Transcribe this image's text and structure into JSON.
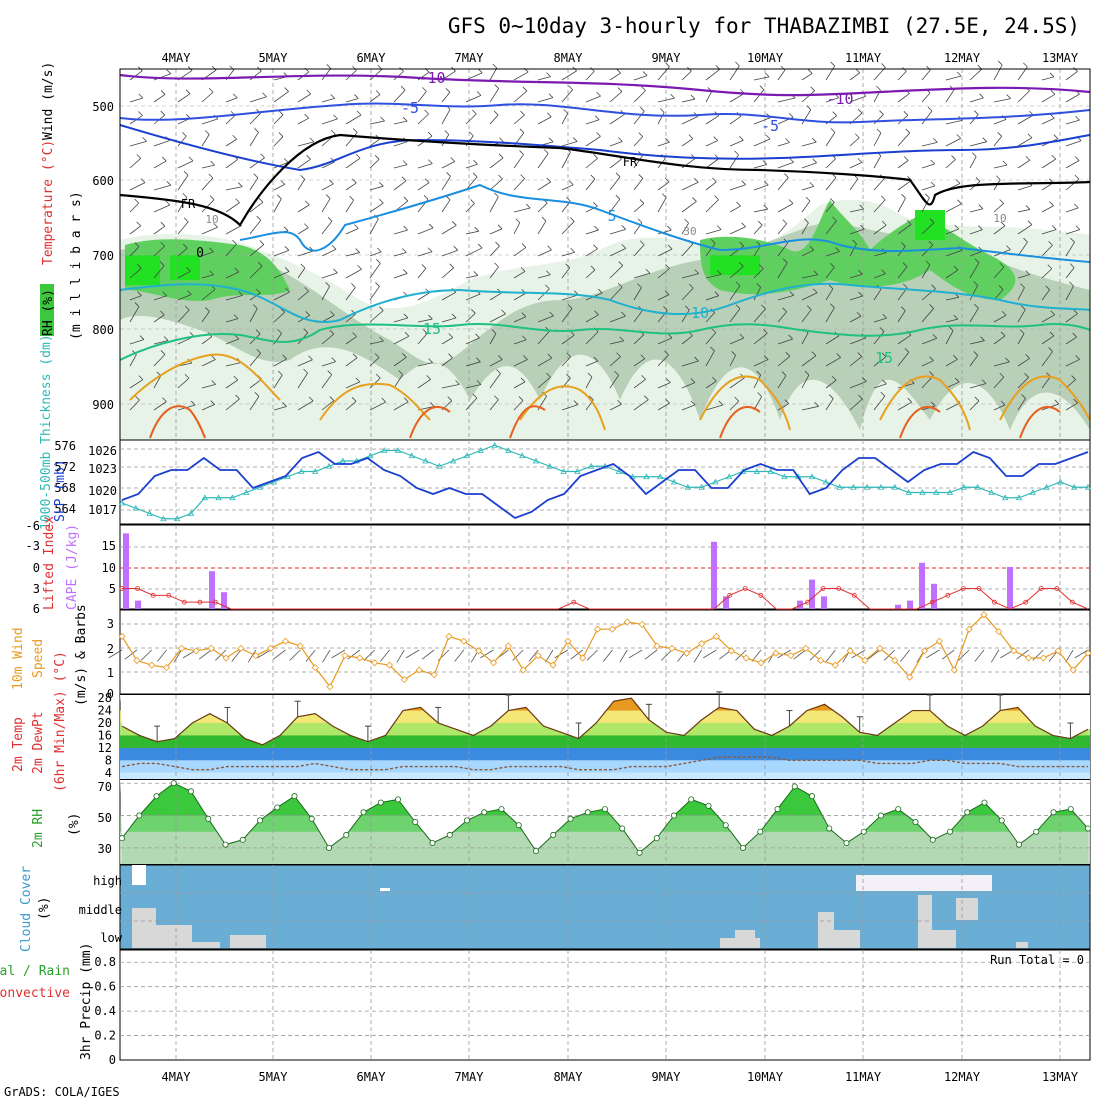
{
  "title": "GFS 0~10day 3-hourly for THABAZIMBI (27.5E, 24.5S)",
  "footer": "GrADS: COLA/IGES",
  "dates": [
    "4MAY",
    "5MAY",
    "6MAY",
    "7MAY",
    "8MAY",
    "9MAY",
    "10MAY",
    "11MAY",
    "12MAY",
    "13MAY"
  ],
  "colors": {
    "grid": "#9a9a9a",
    "blue": "#1a3fcf",
    "cyan": "#2fb8b8",
    "purple": "#c070ff",
    "red": "#e03030",
    "orange": "#e89a20",
    "green": "#3cc83c",
    "cloud": "#6aaed6",
    "cloud_gray": "#d8d8d8"
  },
  "panels": {
    "upper": {
      "label_rh": "RH (%)",
      "label_temp": "Temperature (°C)",
      "label_wind": "Wind (m/s)",
      "ylabel": "(m i l l i b a r s)",
      "yticks": [
        "500",
        "600",
        "700",
        "800",
        "900"
      ],
      "contour_labels": [
        "-10",
        "-5",
        "-5",
        "-10",
        "5",
        "10",
        "15",
        "15",
        "FR",
        "FR",
        "10",
        "10",
        "30",
        "0"
      ]
    },
    "pressure": {
      "ylabel_left": "1000-500mb Thickness (dm)",
      "ylabel_right": "SLP (mb)",
      "thickness_ticks": [
        "576",
        "572",
        "568",
        "564"
      ],
      "slp_ticks": [
        "1026",
        "1023",
        "1020",
        "1017"
      ]
    },
    "instability": {
      "ylabel_left": "Lifted Index",
      "ylabel_right": "CAPE (J/kg)",
      "li_ticks": [
        "-6",
        "-3",
        "0",
        "3",
        "6"
      ],
      "cape_ticks": [
        "15",
        "10",
        "5"
      ]
    },
    "wind10": {
      "ylabel_1": "10m Wind",
      "ylabel_2": "Speed",
      "ylabel_3": "(m/s) & Barbs",
      "yticks": [
        "3",
        "2",
        "1",
        "0"
      ]
    },
    "temp2m": {
      "ylabel_1": "2m Temp",
      "ylabel_2": "2m DewPt",
      "ylabel_3": "(6hr Min/Max) (°C)",
      "yticks": [
        "28",
        "24",
        "20",
        "16",
        "12",
        "8",
        "4"
      ]
    },
    "rh2m": {
      "ylabel_1": "2m RH",
      "ylabel_2": "(%)",
      "yticks": [
        "70",
        "50",
        "30"
      ]
    },
    "cloud": {
      "ylabel_1": "Cloud Cover",
      "ylabel_2": "(%)",
      "levels": [
        "high",
        "middle",
        "low"
      ]
    },
    "precip": {
      "ylabel_1": "Total / Rain",
      "ylabel_2": "Convective",
      "ylabel_3": "3hr Precip (mm)",
      "yticks": [
        "0.8",
        "0.6",
        "0.4",
        "0.2",
        "0"
      ],
      "run_total": "Run Total = 0"
    }
  },
  "chart_data": [
    {
      "type": "line",
      "name": "1000-500mb Thickness",
      "series": [
        {
          "name": "Thickness",
          "values": [
            565,
            564,
            563,
            562,
            562,
            563,
            566,
            566,
            566,
            567,
            568,
            569,
            570,
            571,
            571,
            572,
            573,
            573,
            574,
            575,
            575,
            574,
            573,
            572,
            573,
            574,
            575,
            576,
            575,
            574,
            573,
            572,
            571,
            571,
            572,
            572,
            571,
            570,
            570,
            570,
            569,
            568,
            568,
            569,
            570,
            571,
            571,
            571,
            570,
            570,
            570,
            569,
            568,
            568,
            568,
            568,
            568,
            567,
            567,
            567,
            567,
            568,
            568,
            567,
            566,
            566,
            567,
            568,
            569,
            568,
            568
          ]
        }
      ]
    },
    {
      "type": "line",
      "name": "SLP",
      "series": [
        {
          "name": "SLP",
          "values": [
            1018,
            1019,
            1022,
            1023,
            1023,
            1025,
            1023,
            1023,
            1020,
            1021,
            1022,
            1025,
            1026,
            1024,
            1024,
            1025,
            1023,
            1022,
            1020,
            1019,
            1020,
            1019,
            1019,
            1017,
            1015,
            1016,
            1018,
            1019,
            1022,
            1023,
            1024,
            1022,
            1019,
            1021,
            1023,
            1023,
            1020,
            1020,
            1023,
            1024,
            1023,
            1023,
            1019,
            1020,
            1023,
            1025,
            1025,
            1023,
            1021,
            1023,
            1024,
            1024,
            1026,
            1025,
            1022,
            1022,
            1024,
            1024,
            1025,
            1026
          ]
        }
      ]
    },
    {
      "type": "bar",
      "name": "CAPE",
      "x": [
        "4MAY",
        "4MAY",
        "4MAY",
        "4MAY",
        "9MAY",
        "9MAY",
        "10MAY",
        "10MAY",
        "10MAY",
        "11MAY",
        "11MAY",
        "11MAY",
        "11MAY",
        "12MAY"
      ],
      "values": [
        18,
        2,
        9,
        4,
        16,
        3,
        2,
        7,
        3,
        1,
        2,
        11,
        6,
        10
      ]
    },
    {
      "type": "line",
      "name": "Lifted Index",
      "series": [
        {
          "name": "LI",
          "values": [
            3,
            3,
            4,
            4,
            5,
            5,
            5,
            6,
            6,
            6,
            6,
            6,
            6,
            6,
            6,
            6,
            6,
            6,
            6,
            6,
            6,
            6,
            6,
            6,
            6,
            6,
            6,
            6,
            6,
            5,
            6,
            6,
            6,
            6,
            6,
            6,
            6,
            6,
            6,
            4,
            3,
            4,
            6,
            6,
            5,
            3,
            3,
            4,
            6,
            6,
            6,
            6,
            5,
            4,
            3,
            3,
            5,
            6,
            5,
            3,
            3,
            5,
            6
          ]
        }
      ]
    },
    {
      "type": "line",
      "name": "10m Wind Speed",
      "series": [
        {
          "name": "Speed",
          "values": [
            2.4,
            1.4,
            1.2,
            1.1,
            1.9,
            1.8,
            1.9,
            1.5,
            1.9,
            1.6,
            1.9,
            2.2,
            2.0,
            1.1,
            0.3,
            1.6,
            1.5,
            1.3,
            1.2,
            0.6,
            1.0,
            0.8,
            2.4,
            2.2,
            1.8,
            1.3,
            2.0,
            1.0,
            1.6,
            1.2,
            2.2,
            1.5,
            2.7,
            2.7,
            3.0,
            2.9,
            2.0,
            1.9,
            1.7,
            2.1,
            2.4,
            1.8,
            1.5,
            1.3,
            1.7,
            1.6,
            1.9,
            1.4,
            1.2,
            1.8,
            1.4,
            1.9,
            1.4,
            0.7,
            1.8,
            2.2,
            1.0,
            2.7,
            3.3,
            2.6,
            1.8,
            1.5,
            1.5,
            1.8,
            1.0,
            1.7
          ]
        }
      ]
    },
    {
      "type": "area",
      "name": "2m Temp",
      "series": [
        {
          "name": "Temp",
          "values": [
            19,
            16,
            14,
            15,
            20,
            23,
            20,
            15,
            13,
            16,
            22,
            23,
            19,
            16,
            14,
            16,
            24,
            25,
            20,
            18,
            16,
            19,
            24,
            25,
            19,
            17,
            15,
            20,
            27,
            28,
            21,
            17,
            16,
            21,
            25,
            24,
            18,
            16,
            19,
            24,
            26,
            22,
            17,
            16,
            20,
            24,
            24,
            19,
            16,
            19,
            24,
            25,
            19,
            16,
            15,
            18
          ]
        },
        {
          "name": "DewPt",
          "values": [
            6,
            7,
            7,
            6,
            5,
            5,
            6,
            6,
            6,
            6,
            6,
            7,
            6,
            5,
            5,
            5,
            6,
            6,
            6,
            6,
            5,
            5,
            6,
            6,
            6,
            6,
            5,
            5,
            5,
            6,
            6,
            6,
            7,
            8,
            9,
            9,
            9,
            9,
            8,
            8,
            8,
            8,
            8,
            7,
            7,
            7,
            8,
            8,
            7,
            7,
            7,
            6,
            6,
            6,
            6,
            6
          ]
        }
      ]
    },
    {
      "type": "area",
      "name": "2m RH",
      "series": [
        {
          "name": "RH",
          "values": [
            36,
            50,
            62,
            70,
            65,
            48,
            32,
            35,
            47,
            55,
            62,
            48,
            30,
            38,
            52,
            58,
            60,
            46,
            33,
            38,
            47,
            52,
            54,
            44,
            28,
            38,
            48,
            52,
            54,
            42,
            27,
            36,
            50,
            60,
            56,
            44,
            30,
            40,
            54,
            68,
            62,
            42,
            33,
            40,
            50,
            54,
            46,
            35,
            40,
            52,
            58,
            47,
            32,
            40,
            52,
            54,
            42
          ]
        }
      ]
    },
    {
      "type": "area",
      "name": "3hr Precip",
      "values": [
        0,
        0,
        0,
        0,
        0,
        0,
        0,
        0,
        0,
        0
      ],
      "ylim": [
        0,
        0.9
      ]
    }
  ]
}
